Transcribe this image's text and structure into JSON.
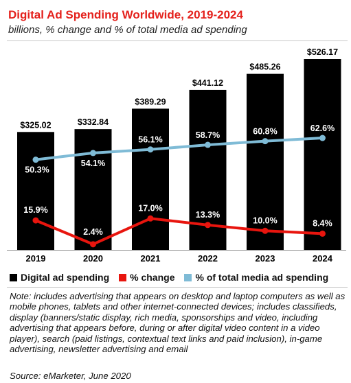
{
  "header": {
    "title": "Digital Ad Spending Worldwide, 2019-2024",
    "subtitle": "billions, % change and % of total media ad spending"
  },
  "legend": [
    {
      "label": "Digital ad spending",
      "color": "#000000"
    },
    {
      "label": "% change",
      "color": "#e8150e"
    },
    {
      "label": "% of total media ad spending",
      "color": "#7fbbd6"
    }
  ],
  "footer": {
    "note": "Note: includes advertising that appears on desktop and laptop computers as well as mobile phones, tablets and other internet-connected devices; includes classifieds, display (banners/static display, rich media, sponsorships and video, including advertising that appears before, during or after digital video content in a video player), search (paid listings, contextual text links and paid inclusion), in-game advertising, newsletter advertising and email",
    "source": "Source: eMarketer, June 2020"
  },
  "chart_data": {
    "type": "bar",
    "categories": [
      "2019",
      "2020",
      "2021",
      "2022",
      "2023",
      "2024"
    ],
    "series": [
      {
        "name": "Digital ad spending",
        "values": [
          325.02,
          332.84,
          389.29,
          441.12,
          485.26,
          526.17
        ],
        "labels": [
          "$325.02",
          "$332.84",
          "$389.29",
          "$441.12",
          "$485.26",
          "$526.17"
        ],
        "color": "#000000",
        "kind": "bar"
      },
      {
        "name": "% change",
        "values": [
          15.9,
          2.4,
          17.0,
          13.3,
          10.0,
          8.4
        ],
        "labels": [
          "15.9%",
          "2.4%",
          "17.0%",
          "13.3%",
          "10.0%",
          "8.4%"
        ],
        "color": "#e8150e",
        "kind": "line"
      },
      {
        "name": "% of total media ad spending",
        "values": [
          50.3,
          54.1,
          56.1,
          58.7,
          60.8,
          62.6
        ],
        "labels": [
          "50.3%",
          "54.1%",
          "56.1%",
          "58.7%",
          "60.8%",
          "62.6%"
        ],
        "color": "#7fbbd6",
        "kind": "line"
      }
    ],
    "grid": false,
    "legend_position": "bottom"
  }
}
